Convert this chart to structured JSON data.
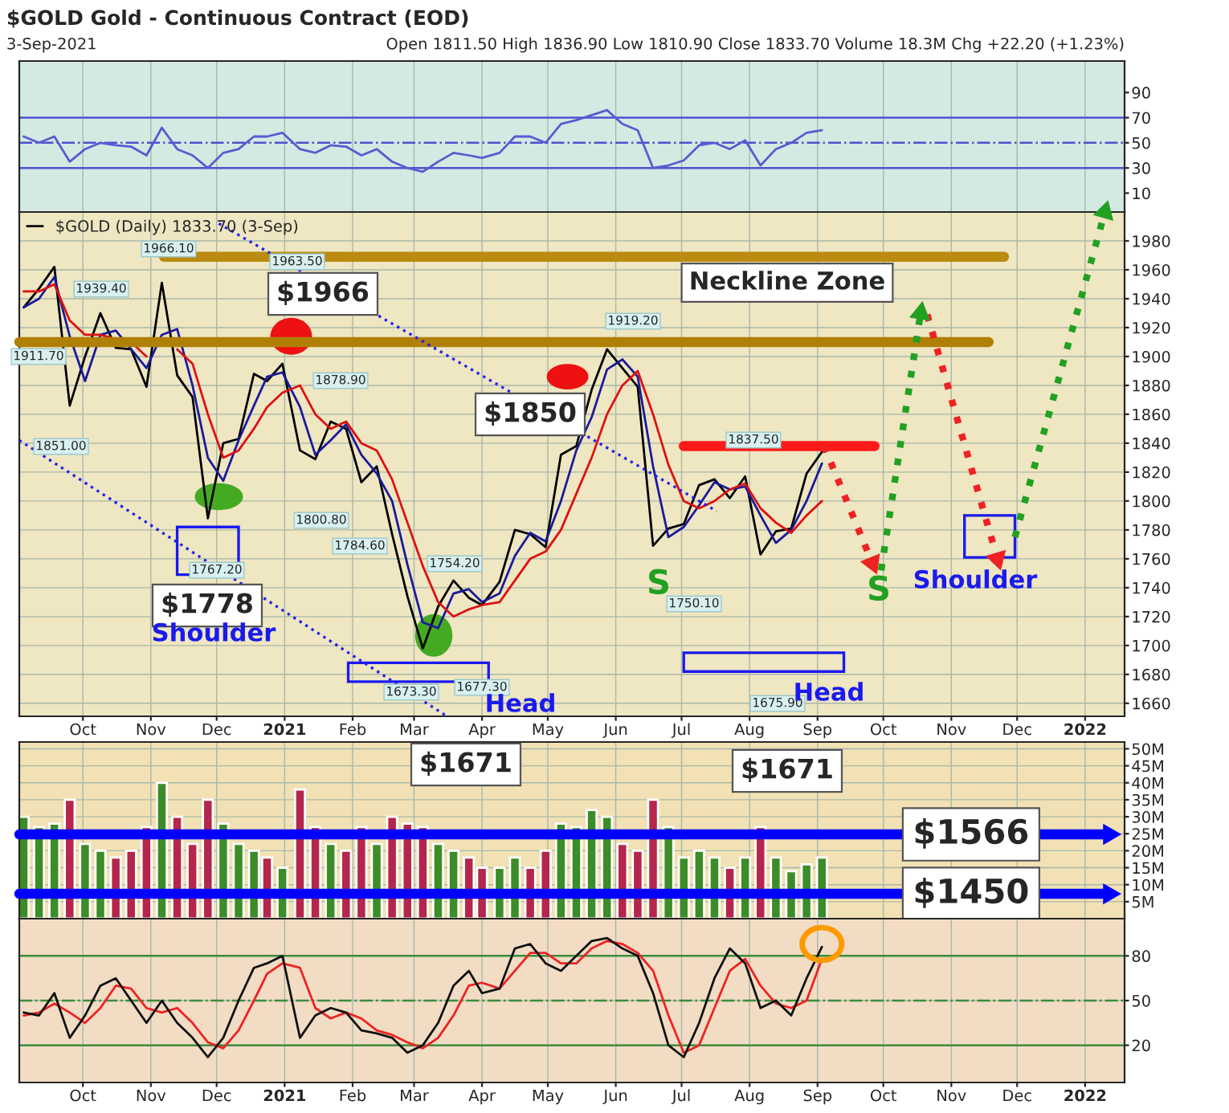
{
  "chart_data": [
    {
      "type": "line",
      "title": "$GOLD Gold - Continuous Contract (EOD)",
      "subtitle": "3-Sep-2021",
      "annotations": [
        "Open 1811.50 High 1836.90 Low 1810.90 Close 1833.70 Volume 18.3M Chg +22.20 (+1.23%)"
      ],
      "x": [
        "2020-09-04",
        "2020-09-11",
        "2020-09-18",
        "2020-09-25",
        "2020-10-02",
        "2020-10-09",
        "2020-10-16",
        "2020-10-23",
        "2020-10-30",
        "2020-11-06",
        "2020-11-13",
        "2020-11-20",
        "2020-11-27",
        "2020-12-04",
        "2020-12-11",
        "2020-12-18",
        "2020-12-24",
        "2020-12-31",
        "2021-01-08",
        "2021-01-15",
        "2021-01-22",
        "2021-01-29",
        "2021-02-05",
        "2021-02-12",
        "2021-02-19",
        "2021-02-26",
        "2021-03-05",
        "2021-03-12",
        "2021-03-19",
        "2021-03-26",
        "2021-04-01",
        "2021-04-09",
        "2021-04-16",
        "2021-04-23",
        "2021-04-30",
        "2021-05-07",
        "2021-05-14",
        "2021-05-21",
        "2021-05-28",
        "2021-06-04",
        "2021-06-11",
        "2021-06-18",
        "2021-06-25",
        "2021-07-02",
        "2021-07-09",
        "2021-07-16",
        "2021-07-23",
        "2021-07-30",
        "2021-08-06",
        "2021-08-13",
        "2021-08-20",
        "2021-08-27",
        "2021-09-03"
      ],
      "series": [
        {
          "color": "#5a5ad0",
          "values": [
            55,
            50,
            55,
            35,
            45,
            50,
            48,
            47,
            40,
            62,
            45,
            40,
            30,
            42,
            45,
            55,
            55,
            58,
            45,
            42,
            48,
            47,
            40,
            45,
            35,
            30,
            27,
            35,
            42,
            40,
            38,
            42,
            55,
            55,
            50,
            65,
            68,
            72,
            76,
            65,
            60,
            30,
            32,
            36,
            48,
            50,
            45,
            52,
            32,
            45,
            50,
            58,
            60
          ]
        }
      ],
      "xlim": [
        "2020-09-02",
        "2022-01-19"
      ],
      "xticks": [
        {
          "value": "2020-10-01",
          "label": null
        },
        {
          "value": "2020-11-01",
          "label": null
        },
        {
          "value": "2020-12-01",
          "label": null
        },
        {
          "value": "2021-01-01",
          "label": null
        },
        {
          "value": "2021-02-01",
          "label": null
        },
        {
          "value": "2021-03-01",
          "label": null
        },
        {
          "value": "2021-04-01",
          "label": null
        },
        {
          "value": "2021-05-01",
          "label": null
        },
        {
          "value": "2021-06-01",
          "label": null
        },
        {
          "value": "2021-07-01",
          "label": null
        },
        {
          "value": "2021-08-01",
          "label": null
        },
        {
          "value": "2021-09-01",
          "label": null
        },
        {
          "value": "2021-10-01",
          "label": null
        },
        {
          "value": "2021-11-01",
          "label": null
        },
        {
          "value": "2021-12-01",
          "label": null
        },
        {
          "value": "2022-01-01",
          "label": null
        }
      ],
      "ylim": [
        -5,
        115
      ],
      "yticks": [
        10,
        30,
        50,
        70,
        90
      ],
      "ref_lines": [
        {
          "axis": "y",
          "value": 70,
          "color": "#5050d0"
        },
        {
          "axis": "y",
          "value": 50,
          "color": "#5050d0",
          "line_style": "dashed"
        },
        {
          "axis": "y",
          "value": 30,
          "color": "#5050d0"
        }
      ],
      "grid": "x",
      "tick_labels": "y"
    },
    {
      "type": "line",
      "legend": "top left",
      "x": [
        "2020-09-04",
        "2020-09-11",
        "2020-09-18",
        "2020-09-25",
        "2020-10-02",
        "2020-10-09",
        "2020-10-16",
        "2020-10-23",
        "2020-10-30",
        "2020-11-06",
        "2020-11-13",
        "2020-11-20",
        "2020-11-27",
        "2020-12-04",
        "2020-12-11",
        "2020-12-18",
        "2020-12-24",
        "2020-12-31",
        "2021-01-08",
        "2021-01-15",
        "2021-01-22",
        "2021-01-29",
        "2021-02-05",
        "2021-02-12",
        "2021-02-19",
        "2021-02-26",
        "2021-03-05",
        "2021-03-12",
        "2021-03-19",
        "2021-03-26",
        "2021-04-01",
        "2021-04-09",
        "2021-04-16",
        "2021-04-23",
        "2021-04-30",
        "2021-05-07",
        "2021-05-14",
        "2021-05-21",
        "2021-05-28",
        "2021-06-04",
        "2021-06-11",
        "2021-06-18",
        "2021-06-25",
        "2021-07-02",
        "2021-07-09",
        "2021-07-16",
        "2021-07-23",
        "2021-07-30",
        "2021-08-06",
        "2021-08-13",
        "2021-08-20",
        "2021-08-27",
        "2021-09-03"
      ],
      "series": [
        {
          "name": "$GOLD (Daily) 1833.70 (3-Sep)",
          "color": "#000000",
          "values": [
            1934,
            1947,
            1962,
            1866,
            1900,
            1930,
            1906,
            1905,
            1879,
            1951,
            1887,
            1872,
            1788,
            1840,
            1843,
            1888,
            1883,
            1895,
            1835,
            1829,
            1855,
            1850,
            1813,
            1824,
            1777,
            1734,
            1698,
            1727,
            1745,
            1733,
            1728,
            1744,
            1780,
            1777,
            1768,
            1832,
            1838,
            1877,
            1905,
            1892,
            1879,
            1769,
            1781,
            1784,
            1811,
            1815,
            1802,
            1817,
            1763,
            1779,
            1781,
            1819,
            1834
          ]
        },
        {
          "color": "#1a1a9c",
          "values": [
            1934,
            1940,
            1955,
            1914,
            1883,
            1915,
            1918,
            1905,
            1892,
            1915,
            1919,
            1880,
            1830,
            1814,
            1842,
            1866,
            1886,
            1889,
            1865,
            1832,
            1842,
            1853,
            1832,
            1819,
            1800,
            1756,
            1716,
            1712,
            1736,
            1739,
            1730,
            1736,
            1762,
            1778,
            1772,
            1800,
            1835,
            1858,
            1891,
            1898,
            1886,
            1824,
            1775,
            1782,
            1797,
            1813,
            1808,
            1810,
            1790,
            1771,
            1780,
            1800,
            1826
          ]
        },
        {
          "color": "#dd1111",
          "values": [
            1945,
            1945,
            1950,
            1925,
            1915,
            1915,
            1912,
            1910,
            1900,
            null,
            1905,
            1895,
            1860,
            1830,
            1835,
            1850,
            1865,
            1875,
            1880,
            1860,
            1850,
            1855,
            1840,
            1835,
            1815,
            1785,
            1755,
            1730,
            1720,
            1725,
            1728,
            1730,
            1745,
            1760,
            1765,
            1780,
            1805,
            1830,
            1860,
            1880,
            1890,
            1860,
            1825,
            1800,
            1795,
            1800,
            1808,
            1812,
            1795,
            1785,
            1778,
            1790,
            1800
          ]
        },
        {
          "color": "#bb8a10",
          "x": [
            "2020-11-07",
            "2021-11-25"
          ],
          "values": [
            1969,
            1969
          ]
        },
        {
          "color": "#b07f05",
          "x": [
            "2020-09-02",
            "2021-11-18"
          ],
          "values": [
            1910,
            1910
          ]
        },
        {
          "color": "#ff1a1a",
          "x": [
            "2021-07-02",
            "2021-09-27"
          ],
          "values": [
            1838,
            1838
          ]
        },
        {
          "color": "#2222ee",
          "line_style": "dotted",
          "x": [
            "2020-12-02",
            "2021-07-17"
          ],
          "values": [
            1992,
            1793
          ]
        },
        {
          "color": "#2222ee",
          "line_style": "dotted",
          "x": [
            "2020-09-02",
            "2021-03-15"
          ],
          "values": [
            1842,
            1652
          ]
        },
        {
          "color": "#ee2222",
          "line_style": "dotted",
          "marker": "triangle",
          "x": [
            "2021-09-04",
            "2021-09-26"
          ],
          "values": [
            1838,
            1757
          ]
        },
        {
          "color": "#22a022",
          "line_style": "dotted",
          "marker": "triangle",
          "x": [
            "2021-09-30",
            "2021-10-18"
          ],
          "values": [
            1752,
            1930
          ]
        },
        {
          "color": "#ee2222",
          "line_style": "dotted",
          "marker": "triangle",
          "x": [
            "2021-10-21",
            "2021-11-22"
          ],
          "values": [
            1929,
            1760
          ]
        },
        {
          "color": "#22a022",
          "line_style": "dotted",
          "marker": "triangle",
          "x": [
            "2021-11-30",
            "2022-01-10"
          ],
          "values": [
            1775,
            2000
          ]
        }
      ],
      "annotations": [
        "1911.70",
        "1966.10",
        "1963.50",
        "1939.40",
        "1851.00",
        "1767.20",
        "1878.90",
        "1800.80",
        "1784.60",
        "1754.20",
        "1673.30",
        "1677.30",
        "1919.20",
        "1837.50",
        "1750.10",
        "1675.90",
        "$1966",
        "$1850",
        "$1778",
        "$1671",
        "$1671",
        "Neckline Zone",
        "Shoulder",
        "Head",
        "Head",
        "S",
        "S",
        "Shoulder"
      ],
      "xlim": [
        "2020-09-02",
        "2022-01-19"
      ],
      "xticks": [
        {
          "value": "2020-10-01",
          "label": "Oct"
        },
        {
          "value": "2020-11-01",
          "label": "Nov"
        },
        {
          "value": "2020-12-01",
          "label": "Dec"
        },
        {
          "value": "2021-01-01",
          "label": "2021"
        },
        {
          "value": "2021-02-01",
          "label": "Feb"
        },
        {
          "value": "2021-03-01",
          "label": "Mar"
        },
        {
          "value": "2021-04-01",
          "label": "Apr"
        },
        {
          "value": "2021-05-01",
          "label": "May"
        },
        {
          "value": "2021-06-01",
          "label": "Jun"
        },
        {
          "value": "2021-07-01",
          "label": "Jul"
        },
        {
          "value": "2021-08-01",
          "label": "Aug"
        },
        {
          "value": "2021-09-01",
          "label": "Sep"
        },
        {
          "value": "2021-10-01",
          "label": "Oct"
        },
        {
          "value": "2021-11-01",
          "label": "Nov"
        },
        {
          "value": "2021-12-01",
          "label": "Dec"
        },
        {
          "value": "2022-01-01",
          "label": "2022"
        }
      ],
      "ylim": [
        1651,
        2000
      ],
      "yticks": [
        1660,
        1680,
        1700,
        1720,
        1740,
        1760,
        1780,
        1800,
        1820,
        1840,
        1860,
        1880,
        1900,
        1920,
        1940,
        1960,
        1980
      ],
      "grid": true
    },
    {
      "type": "bar",
      "x": [
        "2020-09-04",
        "2020-09-11",
        "2020-09-18",
        "2020-09-25",
        "2020-10-02",
        "2020-10-09",
        "2020-10-16",
        "2020-10-23",
        "2020-10-30",
        "2020-11-06",
        "2020-11-13",
        "2020-11-20",
        "2020-11-27",
        "2020-12-04",
        "2020-12-11",
        "2020-12-18",
        "2020-12-24",
        "2020-12-31",
        "2021-01-08",
        "2021-01-15",
        "2021-01-22",
        "2021-01-29",
        "2021-02-05",
        "2021-02-12",
        "2021-02-19",
        "2021-02-26",
        "2021-03-05",
        "2021-03-12",
        "2021-03-19",
        "2021-03-26",
        "2021-04-01",
        "2021-04-09",
        "2021-04-16",
        "2021-04-23",
        "2021-04-30",
        "2021-05-07",
        "2021-05-14",
        "2021-05-21",
        "2021-05-28",
        "2021-06-04",
        "2021-06-11",
        "2021-06-18",
        "2021-06-25",
        "2021-07-02",
        "2021-07-09",
        "2021-07-16",
        "2021-07-23",
        "2021-07-30",
        "2021-08-06",
        "2021-08-13",
        "2021-08-20",
        "2021-08-27",
        "2021-09-03"
      ],
      "values": [
        30,
        27,
        28,
        35,
        22,
        20,
        18,
        20,
        27,
        40,
        30,
        22,
        35,
        28,
        22,
        20,
        18,
        15,
        38,
        27,
        22,
        20,
        27,
        22,
        30,
        28,
        27,
        22,
        20,
        18,
        15,
        15,
        18,
        15,
        20,
        28,
        27,
        32,
        30,
        22,
        20,
        35,
        27,
        18,
        20,
        18,
        15,
        18,
        27,
        18,
        14,
        16,
        18
      ],
      "series": [
        {
          "type": "line",
          "color": "#0000ff",
          "marker": "triangle",
          "x": [
            "2020-09-02",
            "2022-01-12"
          ],
          "values": [
            24.8,
            24.8
          ]
        },
        {
          "type": "line",
          "color": "#0000fe",
          "marker": "triangle",
          "x": [
            "2020-09-02",
            "2022-01-12"
          ],
          "values": [
            7.3,
            7.3
          ]
        }
      ],
      "annotations": [
        {
          "text": "$1566",
          "x": "2021-11-10",
          "y": 24.8
        },
        {
          "text": "$1450",
          "x": "2021-11-10",
          "y": 7.3
        }
      ],
      "colors": [
        "#3c8c28",
        "#3c8c28",
        "#3c8c28",
        "#b4264c",
        "#3c8c28",
        "#3c8c28",
        "#b4264c",
        "#b4264c",
        "#b4264c",
        "#3c8c28",
        "#b4264c",
        "#b4264c",
        "#b4264c",
        "#3c8c28",
        "#3c8c28",
        "#3c8c28",
        "#b4264c",
        "#3c8c28",
        "#b4264c",
        "#b4264c",
        "#3c8c28",
        "#b4264c",
        "#b4264c",
        "#3c8c28",
        "#b4264c",
        "#b4264c",
        "#b4264c",
        "#3c8c28",
        "#3c8c28",
        "#b4264c",
        "#b4264c",
        "#3c8c28",
        "#3c8c28",
        "#b4264c",
        "#b4264c",
        "#3c8c28",
        "#3c8c28",
        "#3c8c28",
        "#3c8c28",
        "#b4264c",
        "#b4264c",
        "#b4264c",
        "#3c8c28",
        "#3c8c28",
        "#3c8c28",
        "#3c8c28",
        "#b4264c",
        "#3c8c28",
        "#b4264c",
        "#3c8c28",
        "#3c8c28",
        "#3c8c28",
        "#3c8c28"
      ],
      "xlim": [
        "2020-09-02",
        "2022-01-19"
      ],
      "xticks": [
        {
          "value": "2020-10-01",
          "label": null
        },
        {
          "value": "2020-11-01",
          "label": null
        },
        {
          "value": "2020-12-01",
          "label": null
        },
        {
          "value": "2021-01-01",
          "label": null
        },
        {
          "value": "2021-02-01",
          "label": null
        },
        {
          "value": "2021-03-01",
          "label": null
        },
        {
          "value": "2021-04-01",
          "label": null
        },
        {
          "value": "2021-05-01",
          "label": null
        },
        {
          "value": "2021-06-01",
          "label": null
        },
        {
          "value": "2021-07-01",
          "label": null
        },
        {
          "value": "2021-08-01",
          "label": null
        },
        {
          "value": "2021-09-01",
          "label": null
        },
        {
          "value": "2021-10-01",
          "label": null
        },
        {
          "value": "2021-11-01",
          "label": null
        },
        {
          "value": "2021-12-01",
          "label": null
        },
        {
          "value": "2022-01-01",
          "label": null
        }
      ],
      "ylim": [
        0,
        52
      ],
      "yticks": [
        {
          "value": 5,
          "label": "5M"
        },
        {
          "value": 10,
          "label": "10M"
        },
        {
          "value": 15,
          "label": "15M"
        },
        {
          "value": 20,
          "label": "20M"
        },
        {
          "value": 25,
          "label": "25M"
        },
        {
          "value": 30,
          "label": "30M"
        },
        {
          "value": 35,
          "label": "35M"
        },
        {
          "value": 40,
          "label": "40M"
        },
        {
          "value": 45,
          "label": "45M"
        },
        {
          "value": 50,
          "label": "50M"
        }
      ],
      "grid": true,
      "tick_labels": "y"
    },
    {
      "type": "line",
      "x": [
        "2020-09-04",
        "2020-09-11",
        "2020-09-18",
        "2020-09-25",
        "2020-10-02",
        "2020-10-09",
        "2020-10-16",
        "2020-10-23",
        "2020-10-30",
        "2020-11-06",
        "2020-11-13",
        "2020-11-20",
        "2020-11-27",
        "2020-12-04",
        "2020-12-11",
        "2020-12-18",
        "2020-12-24",
        "2020-12-31",
        "2021-01-08",
        "2021-01-15",
        "2021-01-22",
        "2021-01-29",
        "2021-02-05",
        "2021-02-12",
        "2021-02-19",
        "2021-02-26",
        "2021-03-05",
        "2021-03-12",
        "2021-03-19",
        "2021-03-26",
        "2021-04-01",
        "2021-04-09",
        "2021-04-16",
        "2021-04-23",
        "2021-04-30",
        "2021-05-07",
        "2021-05-14",
        "2021-05-21",
        "2021-05-28",
        "2021-06-04",
        "2021-06-11",
        "2021-06-18",
        "2021-06-25",
        "2021-07-02",
        "2021-07-09",
        "2021-07-16",
        "2021-07-23",
        "2021-07-30",
        "2021-08-06",
        "2021-08-13",
        "2021-08-20",
        "2021-08-27",
        "2021-09-03"
      ],
      "series": [
        {
          "color": "#ee2222",
          "values": [
            40,
            42,
            48,
            42,
            35,
            45,
            60,
            58,
            45,
            42,
            45,
            35,
            22,
            18,
            30,
            50,
            68,
            75,
            72,
            45,
            38,
            42,
            38,
            30,
            27,
            22,
            18,
            25,
            40,
            60,
            62,
            58,
            70,
            82,
            82,
            75,
            75,
            85,
            90,
            88,
            82,
            70,
            40,
            15,
            20,
            45,
            70,
            78,
            60,
            48,
            45,
            50,
            78
          ]
        },
        {
          "color": "#111111",
          "values": [
            42,
            40,
            55,
            25,
            40,
            60,
            65,
            50,
            35,
            50,
            35,
            25,
            12,
            25,
            50,
            72,
            75,
            80,
            25,
            40,
            45,
            42,
            30,
            28,
            25,
            15,
            20,
            35,
            60,
            70,
            55,
            58,
            85,
            88,
            75,
            70,
            80,
            90,
            92,
            85,
            80,
            55,
            20,
            12,
            35,
            65,
            85,
            75,
            45,
            50,
            40,
            65,
            86
          ]
        }
      ],
      "ref_lines": [
        {
          "axis": "y",
          "value": 80,
          "color": "#3c8c3c"
        },
        {
          "axis": "y",
          "value": 50,
          "color": "#3c8c3c",
          "line_style": "dashed"
        },
        {
          "axis": "y",
          "value": 20,
          "color": "#3c8c3c"
        }
      ],
      "xlim": [
        "2020-09-02",
        "2022-01-19"
      ],
      "xticks": [
        {
          "value": "2020-10-01",
          "label": "Oct"
        },
        {
          "value": "2020-11-01",
          "label": "Nov"
        },
        {
          "value": "2020-12-01",
          "label": "Dec"
        },
        {
          "value": "2021-01-01",
          "label": "2021"
        },
        {
          "value": "2021-02-01",
          "label": "Feb"
        },
        {
          "value": "2021-03-01",
          "label": "Mar"
        },
        {
          "value": "2021-04-01",
          "label": "Apr"
        },
        {
          "value": "2021-05-01",
          "label": "May"
        },
        {
          "value": "2021-06-01",
          "label": "Jun"
        },
        {
          "value": "2021-07-01",
          "label": "Jul"
        },
        {
          "value": "2021-08-01",
          "label": "Aug"
        },
        {
          "value": "2021-09-01",
          "label": "Sep"
        },
        {
          "value": "2021-10-01",
          "label": "Oct"
        },
        {
          "value": "2021-11-01",
          "label": "Nov"
        },
        {
          "value": "2021-12-01",
          "label": "Dec"
        },
        {
          "value": "2022-01-01",
          "label": "2022"
        }
      ],
      "ylim": [
        -5,
        105
      ],
      "yticks": [
        20,
        50,
        80
      ],
      "grid": true
    }
  ]
}
